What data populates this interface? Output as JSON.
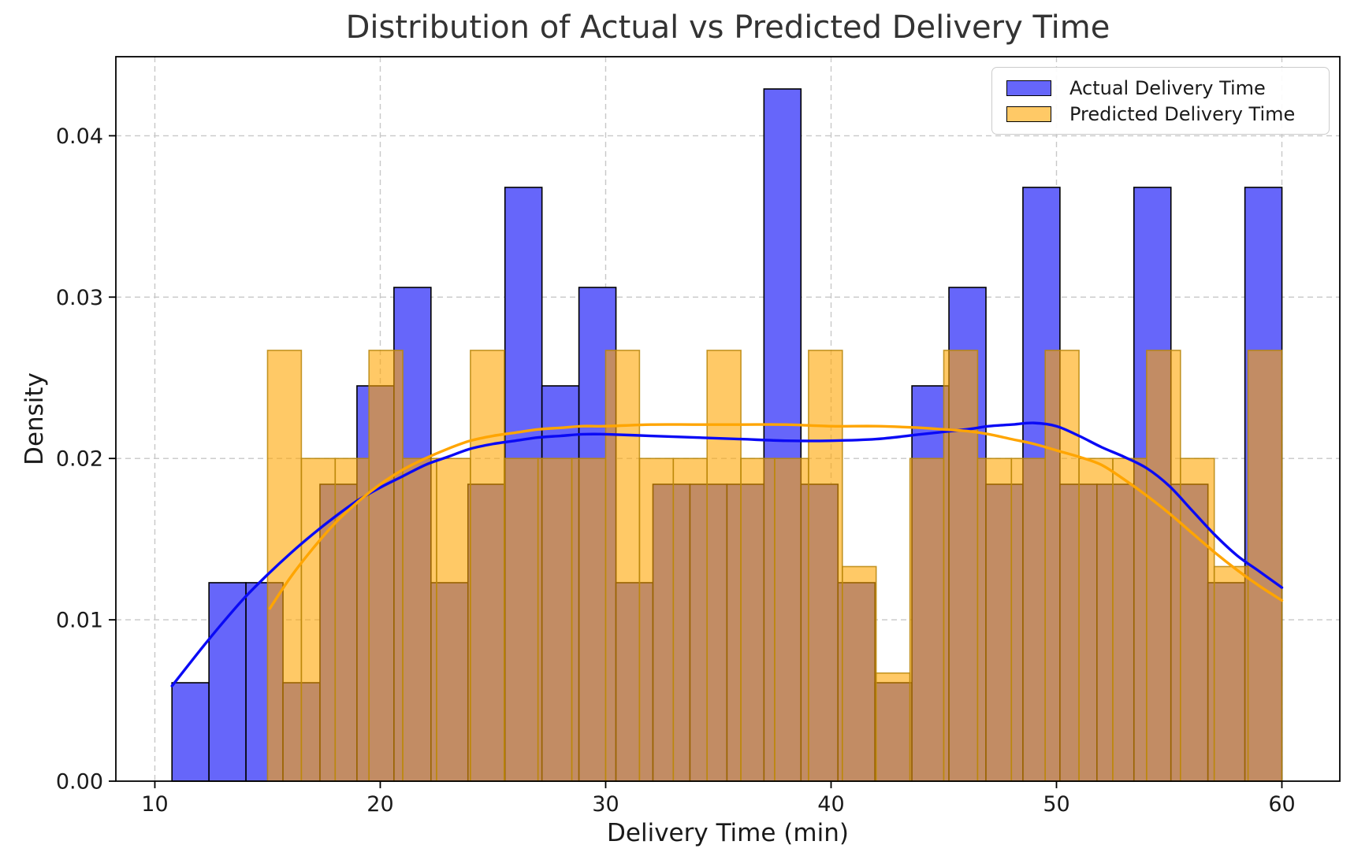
{
  "chart_data": {
    "type": "histogram",
    "title": "Distribution of Actual vs Predicted Delivery Time",
    "xlabel": "Delivery Time (min)",
    "ylabel": "Density",
    "xlim": [
      8.27,
      62.57
    ],
    "ylim": [
      0,
      0.0449
    ],
    "grid": true,
    "grid_style": "dashed",
    "legend_position": "upper right",
    "xticks": [
      {
        "v": 10,
        "label": "10"
      },
      {
        "v": 20,
        "label": "20"
      },
      {
        "v": 30,
        "label": "30"
      },
      {
        "v": 40,
        "label": "40"
      },
      {
        "v": 50,
        "label": "50"
      },
      {
        "v": 60,
        "label": "60"
      }
    ],
    "yticks": [
      {
        "v": 0.0,
        "label": "0.00"
      },
      {
        "v": 0.01,
        "label": "0.01"
      },
      {
        "v": 0.02,
        "label": "0.02"
      },
      {
        "v": 0.03,
        "label": "0.03"
      },
      {
        "v": 0.04,
        "label": "0.04"
      }
    ],
    "series": [
      {
        "name": "Actual Delivery Time",
        "kind": "histogram",
        "bin_start": 10.76,
        "bin_width": 1.6414,
        "fill": "#6666FA",
        "edge": "#000000",
        "densities": [
          0.0061,
          0.0123,
          0.0123,
          0.0061,
          0.0184,
          0.0245,
          0.0306,
          0.0123,
          0.0184,
          0.0368,
          0.0245,
          0.0306,
          0.0123,
          0.0184,
          0.0184,
          0.0184,
          0.0429,
          0.0184,
          0.0123,
          0.0061,
          0.0245,
          0.0306,
          0.0184,
          0.0368,
          0.0184,
          0.0184,
          0.0368,
          0.0184,
          0.0123,
          0.0368
        ]
      },
      {
        "name": "Predicted Delivery Time",
        "kind": "histogram",
        "bin_start": 15.0,
        "bin_width": 1.5,
        "fill": "rgba(255,165,0,0.6)",
        "edge": "rgba(184,134,11,0.85)",
        "densities": [
          0.0267,
          0.02,
          0.02,
          0.0267,
          0.02,
          0.02,
          0.0267,
          0.02,
          0.02,
          0.02,
          0.0267,
          0.02,
          0.02,
          0.0267,
          0.02,
          0.02,
          0.0267,
          0.0133,
          0.0067,
          0.02,
          0.0267,
          0.02,
          0.02,
          0.0267,
          0.02,
          0.02,
          0.0267,
          0.02,
          0.0133,
          0.0267
        ]
      },
      {
        "name": "Actual Delivery Time KDE",
        "kind": "kde",
        "color": "#0A0AF5",
        "points": [
          [
            10.76,
            0.0059
          ],
          [
            12,
            0.0081
          ],
          [
            13,
            0.0098
          ],
          [
            14,
            0.0114
          ],
          [
            15,
            0.0128
          ],
          [
            16,
            0.0141
          ],
          [
            17,
            0.0153
          ],
          [
            18,
            0.0164
          ],
          [
            19,
            0.0174
          ],
          [
            20,
            0.0182
          ],
          [
            21,
            0.0189
          ],
          [
            22,
            0.0196
          ],
          [
            23,
            0.0201
          ],
          [
            24,
            0.0206
          ],
          [
            25,
            0.0209
          ],
          [
            26,
            0.0211
          ],
          [
            27,
            0.0213
          ],
          [
            28,
            0.0214
          ],
          [
            29,
            0.0215
          ],
          [
            30,
            0.0215
          ],
          [
            32,
            0.0214
          ],
          [
            34,
            0.0213
          ],
          [
            36,
            0.0212
          ],
          [
            38,
            0.0211
          ],
          [
            40,
            0.0211
          ],
          [
            42,
            0.0212
          ],
          [
            44,
            0.0215
          ],
          [
            46,
            0.0218
          ],
          [
            47,
            0.022
          ],
          [
            48,
            0.0221
          ],
          [
            49,
            0.0222
          ],
          [
            50,
            0.022
          ],
          [
            51,
            0.0214
          ],
          [
            52,
            0.0207
          ],
          [
            53,
            0.0201
          ],
          [
            54,
            0.0194
          ],
          [
            55,
            0.0183
          ],
          [
            56,
            0.0168
          ],
          [
            57,
            0.0153
          ],
          [
            58,
            0.014
          ],
          [
            59,
            0.013
          ],
          [
            60,
            0.012
          ]
        ]
      },
      {
        "name": "Predicted Delivery Time KDE",
        "kind": "kde",
        "color": "#FFA500",
        "points": [
          [
            15.1,
            0.0107
          ],
          [
            16,
            0.0126
          ],
          [
            17,
            0.0144
          ],
          [
            18,
            0.016
          ],
          [
            19,
            0.0173
          ],
          [
            20,
            0.0184
          ],
          [
            21,
            0.0193
          ],
          [
            22,
            0.02
          ],
          [
            23,
            0.0206
          ],
          [
            24,
            0.0211
          ],
          [
            25,
            0.0214
          ],
          [
            26,
            0.0216
          ],
          [
            27,
            0.0218
          ],
          [
            28,
            0.0219
          ],
          [
            29,
            0.022
          ],
          [
            30,
            0.022
          ],
          [
            32,
            0.0221
          ],
          [
            34,
            0.0221
          ],
          [
            36,
            0.0221
          ],
          [
            38,
            0.0221
          ],
          [
            40,
            0.022
          ],
          [
            42,
            0.022
          ],
          [
            44,
            0.0219
          ],
          [
            45,
            0.0218
          ],
          [
            46,
            0.0217
          ],
          [
            47,
            0.0215
          ],
          [
            48,
            0.0212
          ],
          [
            49,
            0.0209
          ],
          [
            50,
            0.0205
          ],
          [
            51,
            0.0201
          ],
          [
            52,
            0.0196
          ],
          [
            53,
            0.0187
          ],
          [
            54,
            0.0177
          ],
          [
            55,
            0.0166
          ],
          [
            56,
            0.0154
          ],
          [
            57,
            0.0142
          ],
          [
            58,
            0.0131
          ],
          [
            59,
            0.0121
          ],
          [
            60,
            0.0112
          ]
        ]
      }
    ]
  },
  "legend": {
    "items": [
      {
        "label": "Actual Delivery Time",
        "swatch": "#6666FA",
        "swatch_edge": "#000000"
      },
      {
        "label": "Predicted Delivery Time",
        "swatch": "#FFC966",
        "swatch_edge": "#000000"
      }
    ]
  },
  "style": {
    "grid_color": "#C8C8C8",
    "spine_color": "#000000",
    "tick_color": "#000000",
    "tick_label_color": "#1a1a1a",
    "background": "#ffffff"
  }
}
